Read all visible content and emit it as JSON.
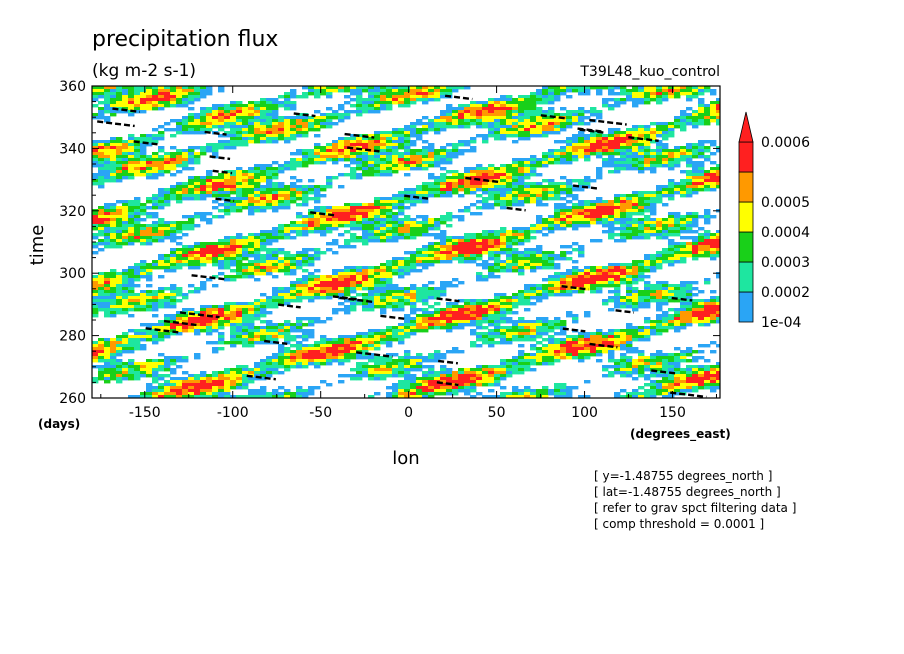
{
  "chart_data": {
    "type": "heatmap",
    "title": "precipitation flux",
    "subtitle": "(kg m-2 s-1)",
    "dataset_label": "T39L48_kuo_control",
    "xlabel": "lon",
    "xunit": "(degrees_east)",
    "ylabel": "time",
    "yunit": "(days)",
    "xlim": [
      -180,
      177
    ],
    "ylim": [
      260,
      360
    ],
    "x_ticks": [
      -150,
      -100,
      -50,
      0,
      50,
      100,
      150
    ],
    "y_ticks": [
      260,
      280,
      300,
      320,
      340,
      360
    ],
    "x_tick_labels": [
      "-150",
      "-100",
      "-50",
      "0",
      "50",
      "100",
      "150"
    ],
    "y_tick_labels": [
      "260",
      "280",
      "300",
      "320",
      "340",
      "360"
    ],
    "colorbar": {
      "levels": [
        0.0001,
        0.0002,
        0.0003,
        0.0004,
        0.0005,
        0.0006
      ],
      "level_labels": [
        "1e-04",
        "0.0002",
        "0.0003",
        "0.0004",
        "0.0005",
        "0.0006"
      ],
      "colors": [
        "#2aa5f5",
        "#1ee6a0",
        "#19d019",
        "#ffff00",
        "#ff9900",
        "#ff2020"
      ],
      "extend": "max"
    },
    "overlay": "black dashed contour segments at comp threshold",
    "pattern": "eastward-propagating precipitation streaks tilted along longitude-time"
  },
  "notes": [
    "[ y=-1.48755 degrees_north ]",
    "[ lat=-1.48755 degrees_north ]",
    "[ refer to grav spct filtering data ]",
    "[ comp threshold = 0.0001 ]"
  ]
}
